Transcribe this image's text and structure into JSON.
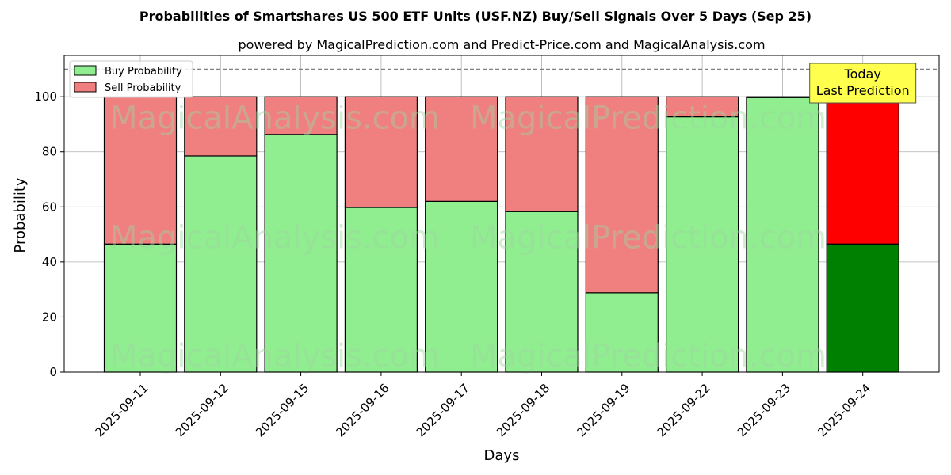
{
  "chart_data": {
    "type": "bar",
    "stacked": true,
    "title": "Probabilities of Smartshares US 500 ETF Units (USF.NZ) Buy/Sell Signals Over 5 Days (Sep 25)",
    "subtitle": "powered by MagicalPrediction.com and Predict-Price.com and MagicalAnalysis.com",
    "xlabel": "Days",
    "ylabel": "Probability",
    "ylim": [
      0,
      115
    ],
    "yticks": [
      0,
      20,
      40,
      60,
      80,
      100
    ],
    "grid": true,
    "legend_position": "top-left",
    "categories": [
      "2025-09-11",
      "2025-09-12",
      "2025-09-15",
      "2025-09-16",
      "2025-09-17",
      "2025-09-18",
      "2025-09-19",
      "2025-09-22",
      "2025-09-23",
      "2025-09-24"
    ],
    "series": [
      {
        "name": "Buy Probability",
        "color": "#90ee90",
        "values": [
          46.5,
          78.5,
          86.3,
          59.8,
          62.0,
          58.3,
          28.8,
          92.7,
          99.7,
          46.5
        ]
      },
      {
        "name": "Sell Probability",
        "color": "#f08080",
        "values": [
          53.5,
          21.5,
          13.7,
          40.2,
          38.0,
          41.7,
          71.2,
          7.3,
          0.3,
          53.5
        ]
      }
    ],
    "highlight": {
      "index": 9,
      "buy_color": "#008000",
      "sell_color": "#ff0000"
    },
    "reference_line": {
      "value": 110,
      "style": "dashed",
      "color": "#808080"
    },
    "annotation": {
      "lines": [
        "Today",
        "Last Prediction"
      ],
      "background": "#ffff4d",
      "category_index": 9
    },
    "watermarks": [
      "MagicalAnalysis.com",
      "MagicalPrediction.com"
    ]
  }
}
